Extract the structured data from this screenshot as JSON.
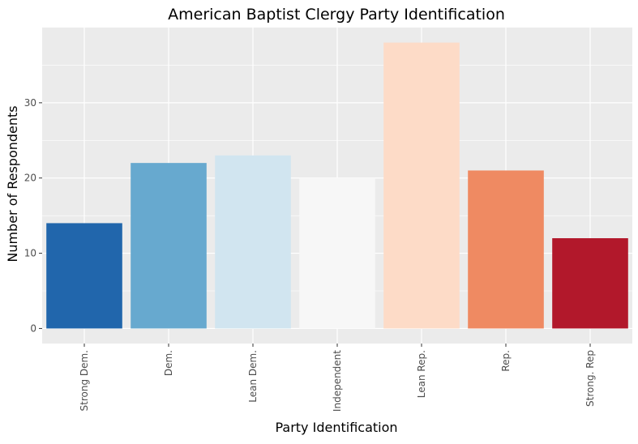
{
  "chart_data": {
    "type": "bar",
    "title": "American Baptist Clergy Party Identification",
    "xlabel": "Party Identification",
    "ylabel": "Number of Respondents",
    "categories": [
      "Strong Dem.",
      "Dem.",
      "Lean Dem.",
      "Independent",
      "Lean Rep.",
      "Rep.",
      "Strong. Rep"
    ],
    "values": [
      14,
      22,
      23,
      20,
      38,
      21,
      12
    ],
    "colors": [
      "#2166ac",
      "#67a9cf",
      "#d1e5f0",
      "#f7f7f7",
      "#fddbc7",
      "#ef8a62",
      "#b2182b"
    ],
    "ylim": [
      -2,
      40
    ],
    "yticks": [
      0,
      10,
      20,
      30
    ],
    "grid": true,
    "panel_background": "#ebebeb",
    "grid_color": "#ffffff"
  }
}
